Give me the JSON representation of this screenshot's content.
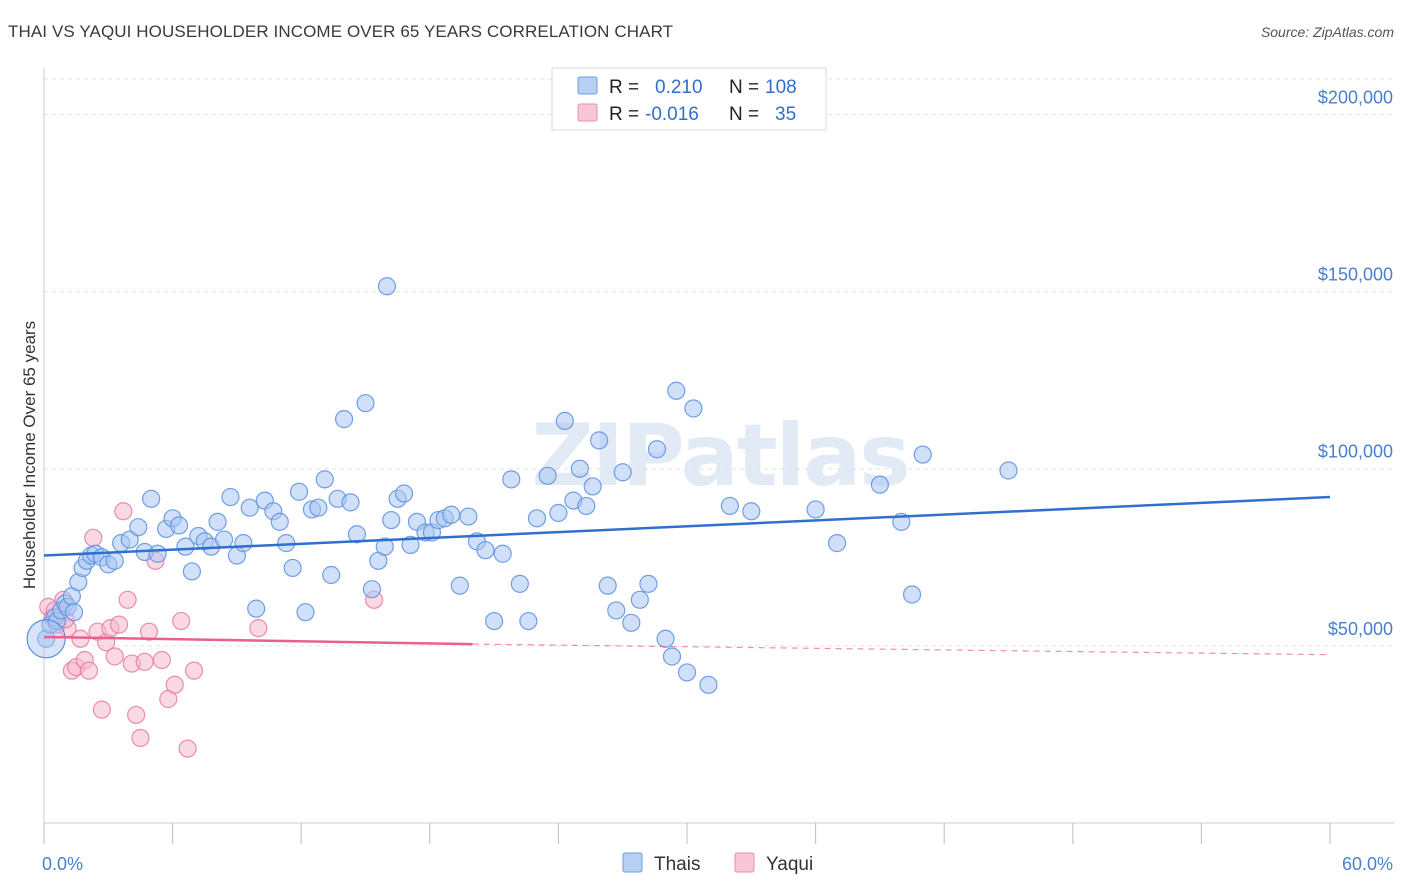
{
  "title": "THAI VS YAQUI HOUSEHOLDER INCOME OVER 65 YEARS CORRELATION CHART",
  "source": "Source: ZipAtlas.com",
  "watermark": "ZIPatlas",
  "colors": {
    "thais": "#5b8fe0",
    "thais_fill": "#a9c6f2",
    "yaqui": "#e87aa0",
    "yaqui_fill": "#f5b9cd",
    "thais_line": "#2f6fd0",
    "yaqui_line": "#e8608c",
    "axis_text": "#4a7fd0",
    "grid": "#e3e3e3"
  },
  "legend": {
    "rows": [
      {
        "series": "thais",
        "r_label": "R =",
        "r_value": "0.210",
        "n_label": "N =",
        "n_value": "108"
      },
      {
        "series": "yaqui",
        "r_label": "R =",
        "r_value": "-0.016",
        "n_label": "N =",
        "n_value": "35"
      }
    ]
  },
  "chart_data": {
    "type": "scatter",
    "title": "THAI VS YAQUI HOUSEHOLDER INCOME OVER 65 YEARS CORRELATION CHART",
    "xlabel": "",
    "ylabel": "Householder Income Over 65 years",
    "xlim": [
      0,
      60
    ],
    "ylim": [
      0,
      210000
    ],
    "x_tick_labels": [
      "0.0%",
      "60.0%"
    ],
    "y_ticks": [
      50000,
      100000,
      150000,
      200000
    ],
    "y_tick_labels": [
      "$50,000",
      "$100,000",
      "$150,000",
      "$200,000"
    ],
    "grid": true,
    "legend_labels": [
      "Thais",
      "Yaqui"
    ],
    "series": [
      {
        "name": "Thais",
        "trend": {
          "x0": 0,
          "y0": 75500,
          "x1": 60,
          "y1": 92000,
          "dashed_to": 60
        },
        "points": [
          [
            0.1,
            52000
          ],
          [
            0.3,
            56000
          ],
          [
            0.5,
            58000
          ],
          [
            0.6,
            57000
          ],
          [
            0.8,
            60000
          ],
          [
            1.0,
            62000
          ],
          [
            1.1,
            61000
          ],
          [
            1.3,
            64000
          ],
          [
            1.4,
            59500
          ],
          [
            1.6,
            68000
          ],
          [
            1.8,
            72000
          ],
          [
            2.0,
            74000
          ],
          [
            2.2,
            75500
          ],
          [
            2.4,
            76000
          ],
          [
            2.7,
            75000
          ],
          [
            3.0,
            73000
          ],
          [
            3.3,
            74000
          ],
          [
            3.6,
            79000
          ],
          [
            4.0,
            80000
          ],
          [
            4.4,
            83500
          ],
          [
            4.7,
            76500
          ],
          [
            5.0,
            91500
          ],
          [
            5.3,
            76000
          ],
          [
            5.7,
            83000
          ],
          [
            6.0,
            86000
          ],
          [
            6.3,
            84000
          ],
          [
            6.6,
            78000
          ],
          [
            6.9,
            71000
          ],
          [
            7.2,
            81000
          ],
          [
            7.5,
            79500
          ],
          [
            7.8,
            78000
          ],
          [
            8.1,
            85000
          ],
          [
            8.4,
            80000
          ],
          [
            8.7,
            92000
          ],
          [
            9.0,
            75500
          ],
          [
            9.3,
            79000
          ],
          [
            9.6,
            89000
          ],
          [
            9.9,
            60500
          ],
          [
            10.3,
            91000
          ],
          [
            10.7,
            88000
          ],
          [
            11.0,
            85000
          ],
          [
            11.3,
            79000
          ],
          [
            11.6,
            72000
          ],
          [
            11.9,
            93500
          ],
          [
            12.2,
            59500
          ],
          [
            12.5,
            88500
          ],
          [
            12.8,
            89000
          ],
          [
            13.1,
            97000
          ],
          [
            13.4,
            70000
          ],
          [
            13.7,
            91500
          ],
          [
            14.0,
            114000
          ],
          [
            14.3,
            90500
          ],
          [
            14.6,
            81500
          ],
          [
            15.0,
            118500
          ],
          [
            15.3,
            66000
          ],
          [
            15.6,
            74000
          ],
          [
            15.9,
            78000
          ],
          [
            16.2,
            85500
          ],
          [
            16.5,
            91500
          ],
          [
            16.8,
            93000
          ],
          [
            17.1,
            78500
          ],
          [
            17.4,
            85000
          ],
          [
            17.8,
            82000
          ],
          [
            18.1,
            82000
          ],
          [
            18.4,
            85500
          ],
          [
            18.7,
            86000
          ],
          [
            19.0,
            87000
          ],
          [
            19.4,
            67000
          ],
          [
            19.8,
            86500
          ],
          [
            20.2,
            79500
          ],
          [
            20.6,
            77000
          ],
          [
            21.0,
            57000
          ],
          [
            21.4,
            76000
          ],
          [
            21.8,
            97000
          ],
          [
            22.2,
            67500
          ],
          [
            22.6,
            57000
          ],
          [
            23.0,
            86000
          ],
          [
            23.5,
            98000
          ],
          [
            24.0,
            87500
          ],
          [
            24.3,
            113500
          ],
          [
            24.7,
            91000
          ],
          [
            25.0,
            100000
          ],
          [
            25.3,
            89500
          ],
          [
            25.6,
            95000
          ],
          [
            25.9,
            108000
          ],
          [
            26.3,
            67000
          ],
          [
            26.7,
            60000
          ],
          [
            27.0,
            99000
          ],
          [
            27.4,
            56500
          ],
          [
            27.8,
            63000
          ],
          [
            28.2,
            67500
          ],
          [
            28.6,
            105500
          ],
          [
            29.0,
            52000
          ],
          [
            29.3,
            47000
          ],
          [
            29.5,
            122000
          ],
          [
            30.0,
            42500
          ],
          [
            30.3,
            117000
          ],
          [
            31.0,
            39000
          ],
          [
            32.0,
            89500
          ],
          [
            33.0,
            88000
          ],
          [
            36.0,
            88500
          ],
          [
            37.0,
            79000
          ],
          [
            39.0,
            95500
          ],
          [
            40.0,
            85000
          ],
          [
            40.5,
            64500
          ],
          [
            41.0,
            104000
          ],
          [
            45.0,
            99500
          ],
          [
            16.0,
            151500
          ]
        ]
      },
      {
        "name": "Yaqui",
        "trend": {
          "x0": 0,
          "y0": 52500,
          "x1": 20,
          "y1": 50500,
          "dashed_to": 60,
          "dashed_y_end": 47500
        },
        "points": [
          [
            0.2,
            61000
          ],
          [
            0.4,
            58000
          ],
          [
            0.6,
            56000
          ],
          [
            0.9,
            63000
          ],
          [
            1.1,
            55000
          ],
          [
            1.3,
            43000
          ],
          [
            1.5,
            44000
          ],
          [
            1.7,
            52000
          ],
          [
            1.9,
            46000
          ],
          [
            2.1,
            43000
          ],
          [
            2.3,
            80500
          ],
          [
            2.5,
            54000
          ],
          [
            2.7,
            32000
          ],
          [
            2.9,
            51000
          ],
          [
            3.1,
            55000
          ],
          [
            3.3,
            47000
          ],
          [
            3.5,
            56000
          ],
          [
            3.7,
            88000
          ],
          [
            3.9,
            63000
          ],
          [
            4.1,
            45000
          ],
          [
            4.3,
            30500
          ],
          [
            4.5,
            24000
          ],
          [
            4.7,
            45500
          ],
          [
            4.9,
            54000
          ],
          [
            5.2,
            74000
          ],
          [
            5.5,
            46000
          ],
          [
            5.8,
            35000
          ],
          [
            6.1,
            39000
          ],
          [
            6.4,
            57000
          ],
          [
            6.7,
            21000
          ],
          [
            7.0,
            43000
          ],
          [
            10.0,
            55000
          ],
          [
            15.4,
            63000
          ],
          [
            0.5,
            60000
          ],
          [
            1.0,
            57500
          ]
        ]
      }
    ]
  }
}
